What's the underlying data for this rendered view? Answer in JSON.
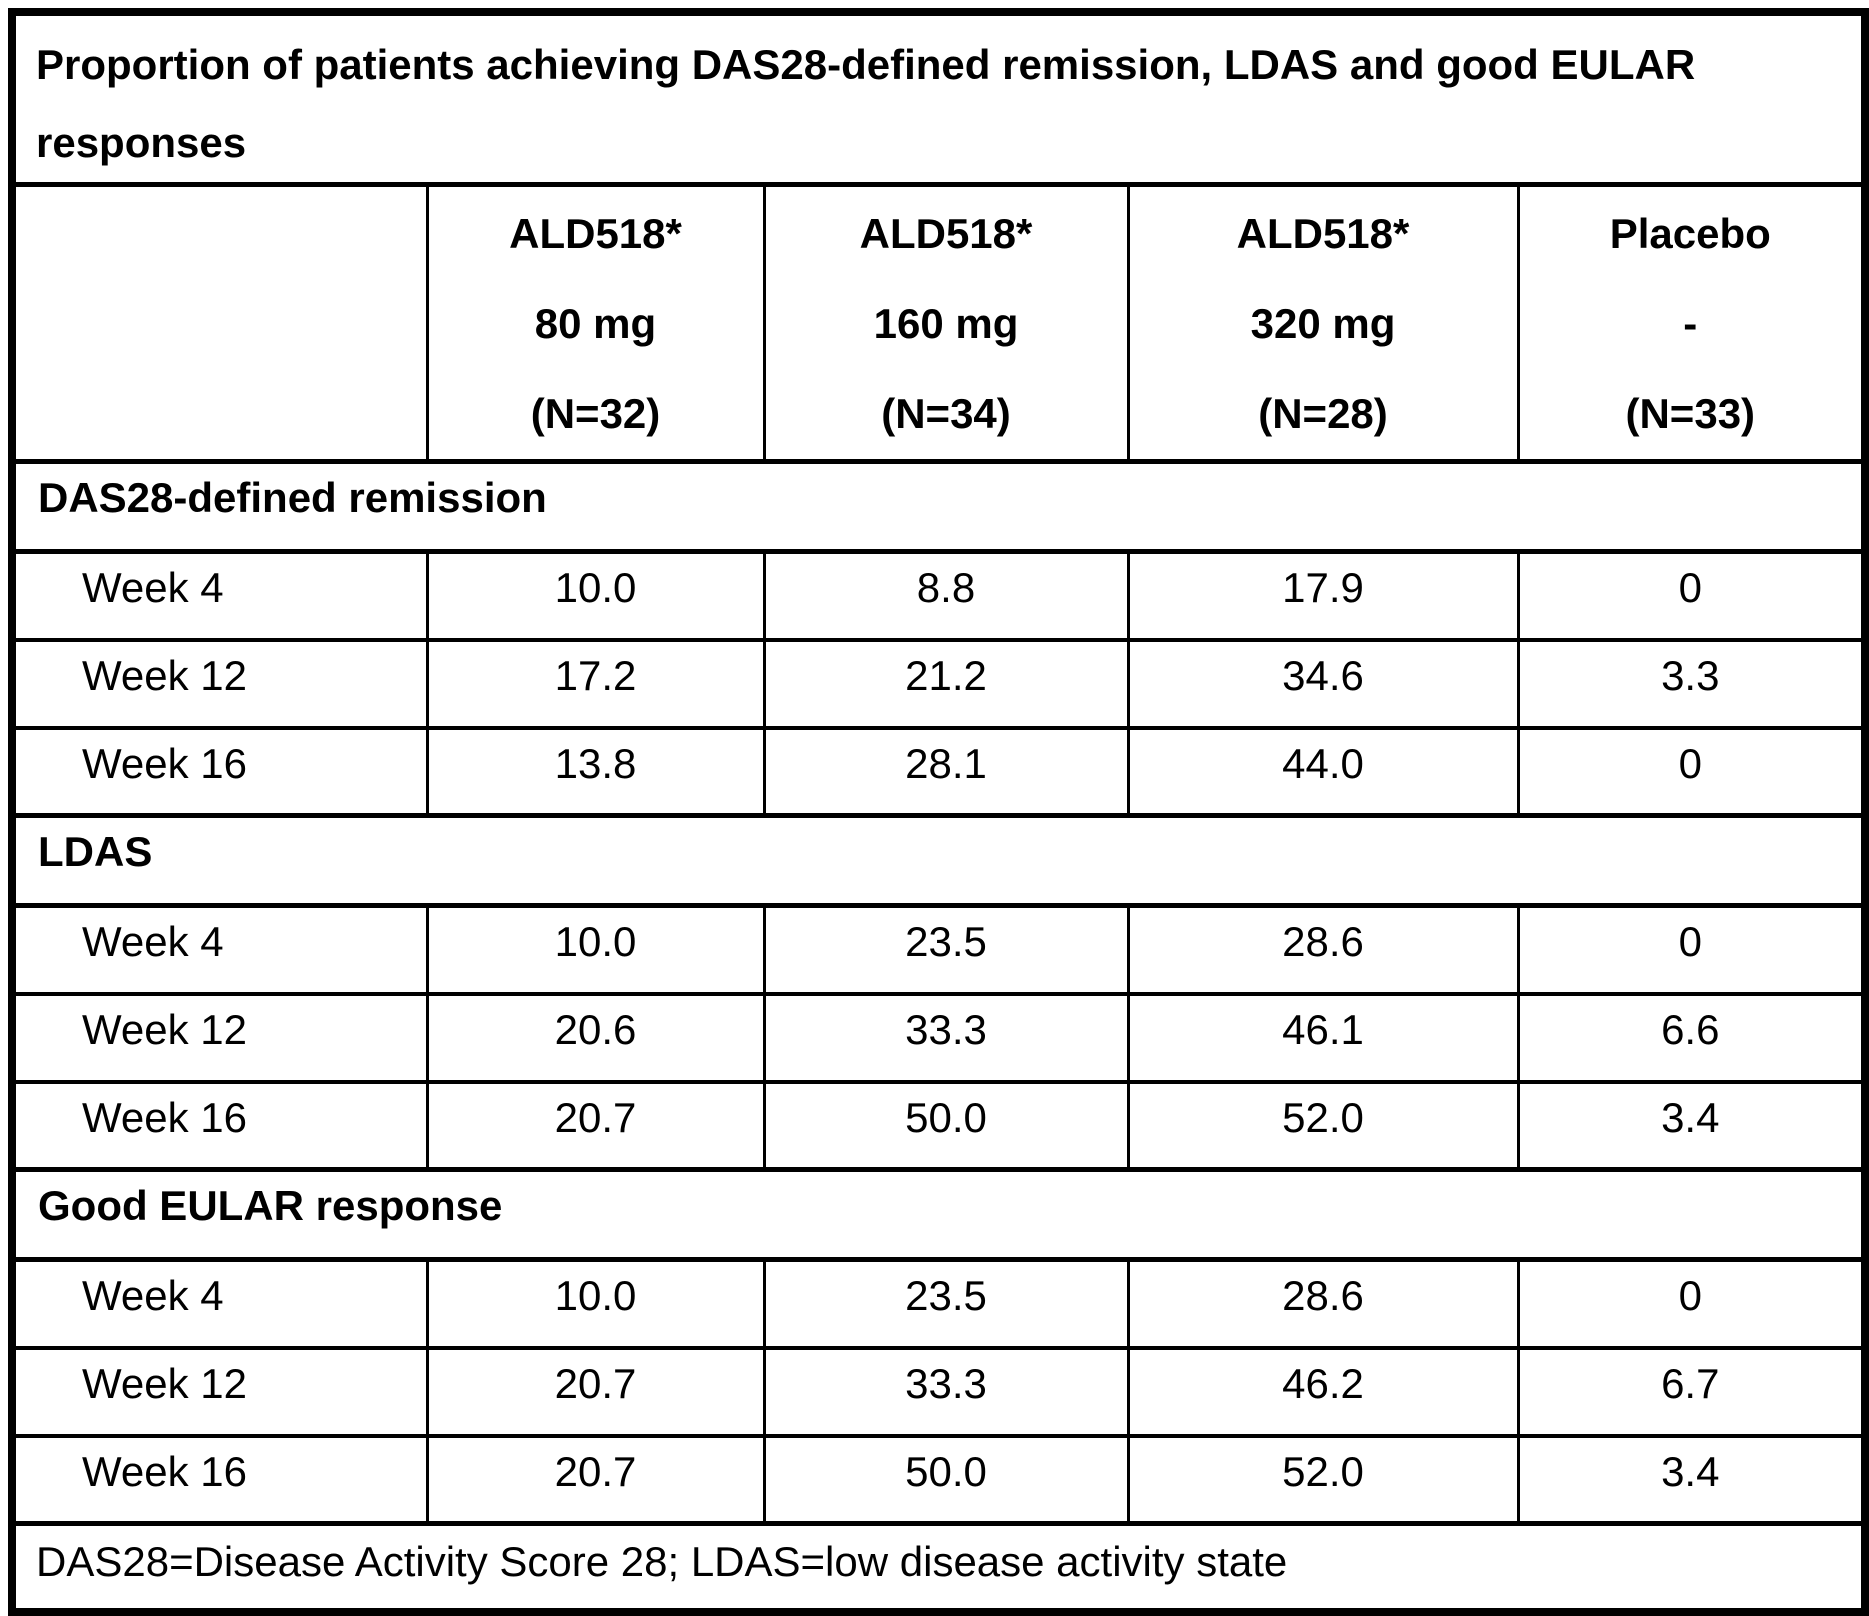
{
  "table": {
    "title": "Proportion of patients achieving DAS28-defined remission, LDAS and good EULAR responses",
    "columns": [
      {
        "line1": "ALD518*",
        "line2": "80 mg",
        "line3": "(N=32)"
      },
      {
        "line1": "ALD518*",
        "line2": "160 mg",
        "line3": "(N=34)"
      },
      {
        "line1": "ALD518*",
        "line2": "320 mg",
        "line3": "(N=28)"
      },
      {
        "line1": "Placebo",
        "line2": "-",
        "line3": "(N=33)"
      }
    ],
    "sections": [
      {
        "header": "DAS28-defined remission",
        "rows": [
          {
            "label": "Week 4",
            "values": [
              "10.0",
              "8.8",
              "17.9",
              "0"
            ]
          },
          {
            "label": "Week 12",
            "values": [
              "17.2",
              "21.2",
              "34.6",
              "3.3"
            ]
          },
          {
            "label": "Week 16",
            "values": [
              "13.8",
              "28.1",
              "44.0",
              "0"
            ]
          }
        ]
      },
      {
        "header": "LDAS",
        "rows": [
          {
            "label": "Week 4",
            "values": [
              "10.0",
              "23.5",
              "28.6",
              "0"
            ]
          },
          {
            "label": "Week 12",
            "values": [
              "20.6",
              "33.3",
              "46.1",
              "6.6"
            ]
          },
          {
            "label": "Week 16",
            "values": [
              "20.7",
              "50.0",
              "52.0",
              "3.4"
            ]
          }
        ]
      },
      {
        "header": "Good EULAR response",
        "rows": [
          {
            "label": "Week 4",
            "values": [
              "10.0",
              "23.5",
              "28.6",
              "0"
            ]
          },
          {
            "label": "Week 12",
            "values": [
              "20.7",
              "33.3",
              "46.2",
              "6.7"
            ]
          },
          {
            "label": "Week 16",
            "values": [
              "20.7",
              "50.0",
              "52.0",
              "3.4"
            ]
          }
        ]
      }
    ],
    "footnote": "DAS28=Disease Activity Score 28; LDAS=low disease activity state"
  },
  "colors": {
    "border": "#000000",
    "background": "#ffffff",
    "text": "#000000"
  }
}
